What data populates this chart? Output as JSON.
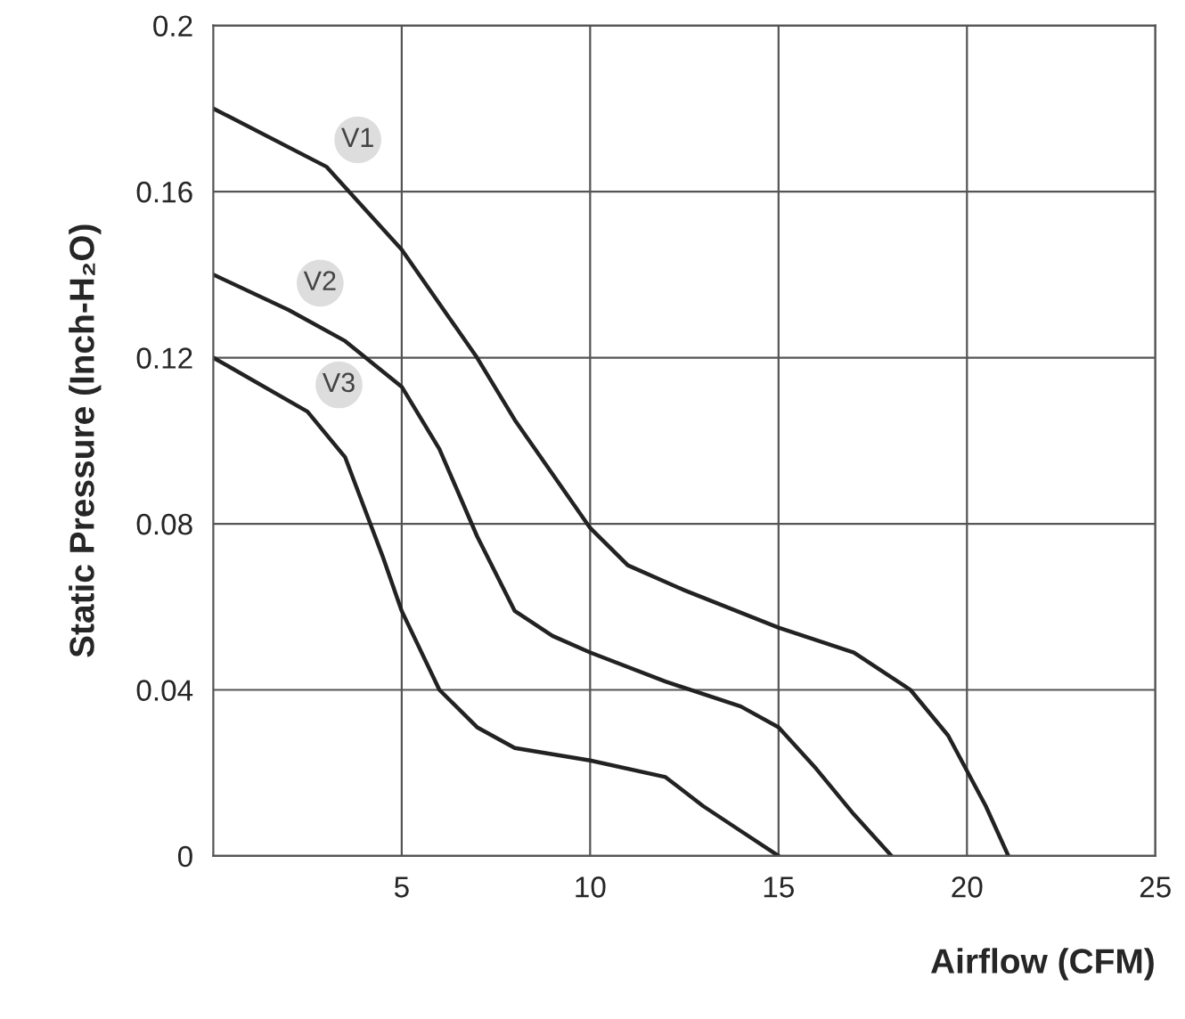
{
  "chart_data": {
    "type": "line",
    "xlabel": "Airflow (CFM)",
    "ylabel": "Static Pressure (Inch-H₂O)",
    "xlim": [
      0,
      25
    ],
    "ylim": [
      0,
      0.2
    ],
    "xticks": [
      5,
      10,
      15,
      20,
      25
    ],
    "yticks": [
      0,
      0.04,
      0.08,
      0.12,
      0.16,
      0.2
    ],
    "grid": true,
    "marker": "none",
    "line_style": "solid",
    "legend": false,
    "series": [
      {
        "name": "V1",
        "color": "#222222",
        "x": [
          0,
          3,
          5,
          7,
          8,
          10,
          11,
          12.5,
          15,
          17,
          18.5,
          19.5,
          20.5,
          21.1
        ],
        "values": [
          0.18,
          0.166,
          0.146,
          0.12,
          0.105,
          0.079,
          0.07,
          0.064,
          0.055,
          0.049,
          0.04,
          0.029,
          0.012,
          0
        ]
      },
      {
        "name": "V2",
        "color": "#222222",
        "x": [
          0,
          2,
          3.5,
          5,
          6,
          7,
          8,
          9,
          10,
          12,
          14,
          15,
          16,
          17,
          18
        ],
        "values": [
          0.14,
          0.1315,
          0.124,
          0.113,
          0.098,
          0.077,
          0.059,
          0.053,
          0.049,
          0.042,
          0.036,
          0.031,
          0.021,
          0.01,
          0
        ]
      },
      {
        "name": "V3",
        "color": "#222222",
        "x": [
          0,
          2.5,
          3.5,
          4.5,
          5,
          6,
          7,
          8,
          10,
          12,
          13,
          14,
          15
        ],
        "values": [
          0.12,
          0.107,
          0.096,
          0.072,
          0.059,
          0.04,
          0.031,
          0.026,
          0.023,
          0.019,
          0.012,
          0.006,
          0
        ]
      }
    ]
  }
}
